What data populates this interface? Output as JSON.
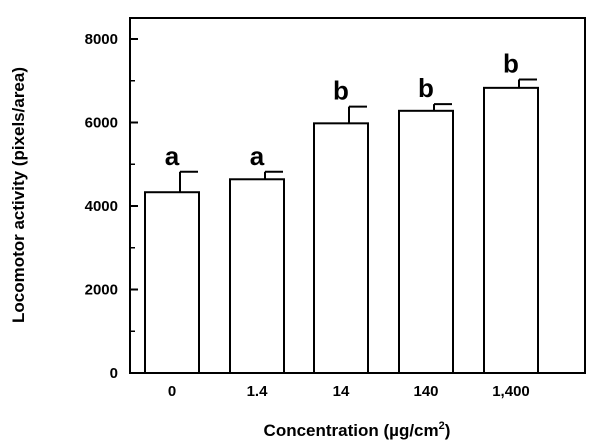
{
  "chart_data": {
    "type": "bar",
    "categories": [
      "0",
      "1.4",
      "14",
      "140",
      "1,400"
    ],
    "values": [
      4330,
      4640,
      5980,
      6280,
      6830
    ],
    "errors": [
      490,
      180,
      400,
      160,
      200
    ],
    "significance": [
      "a",
      "a",
      "b",
      "b",
      "b"
    ],
    "xlabel": "Concentration (µg/cm",
    "xlabel_sup": "2",
    "xlabel_suffix": ")",
    "ylabel": "Locomotor activity (pixels/area)",
    "ylim": [
      0,
      8000
    ],
    "yticks": [
      "0",
      "2000",
      "4000",
      "6000",
      "8000"
    ],
    "ytick_values": [
      0,
      2000,
      4000,
      6000,
      8000
    ],
    "minor_ytick_values": [
      1000,
      3000,
      5000,
      7000
    ],
    "grid": false,
    "bar_fill": "#ffffff",
    "bar_stroke": "#000000"
  }
}
